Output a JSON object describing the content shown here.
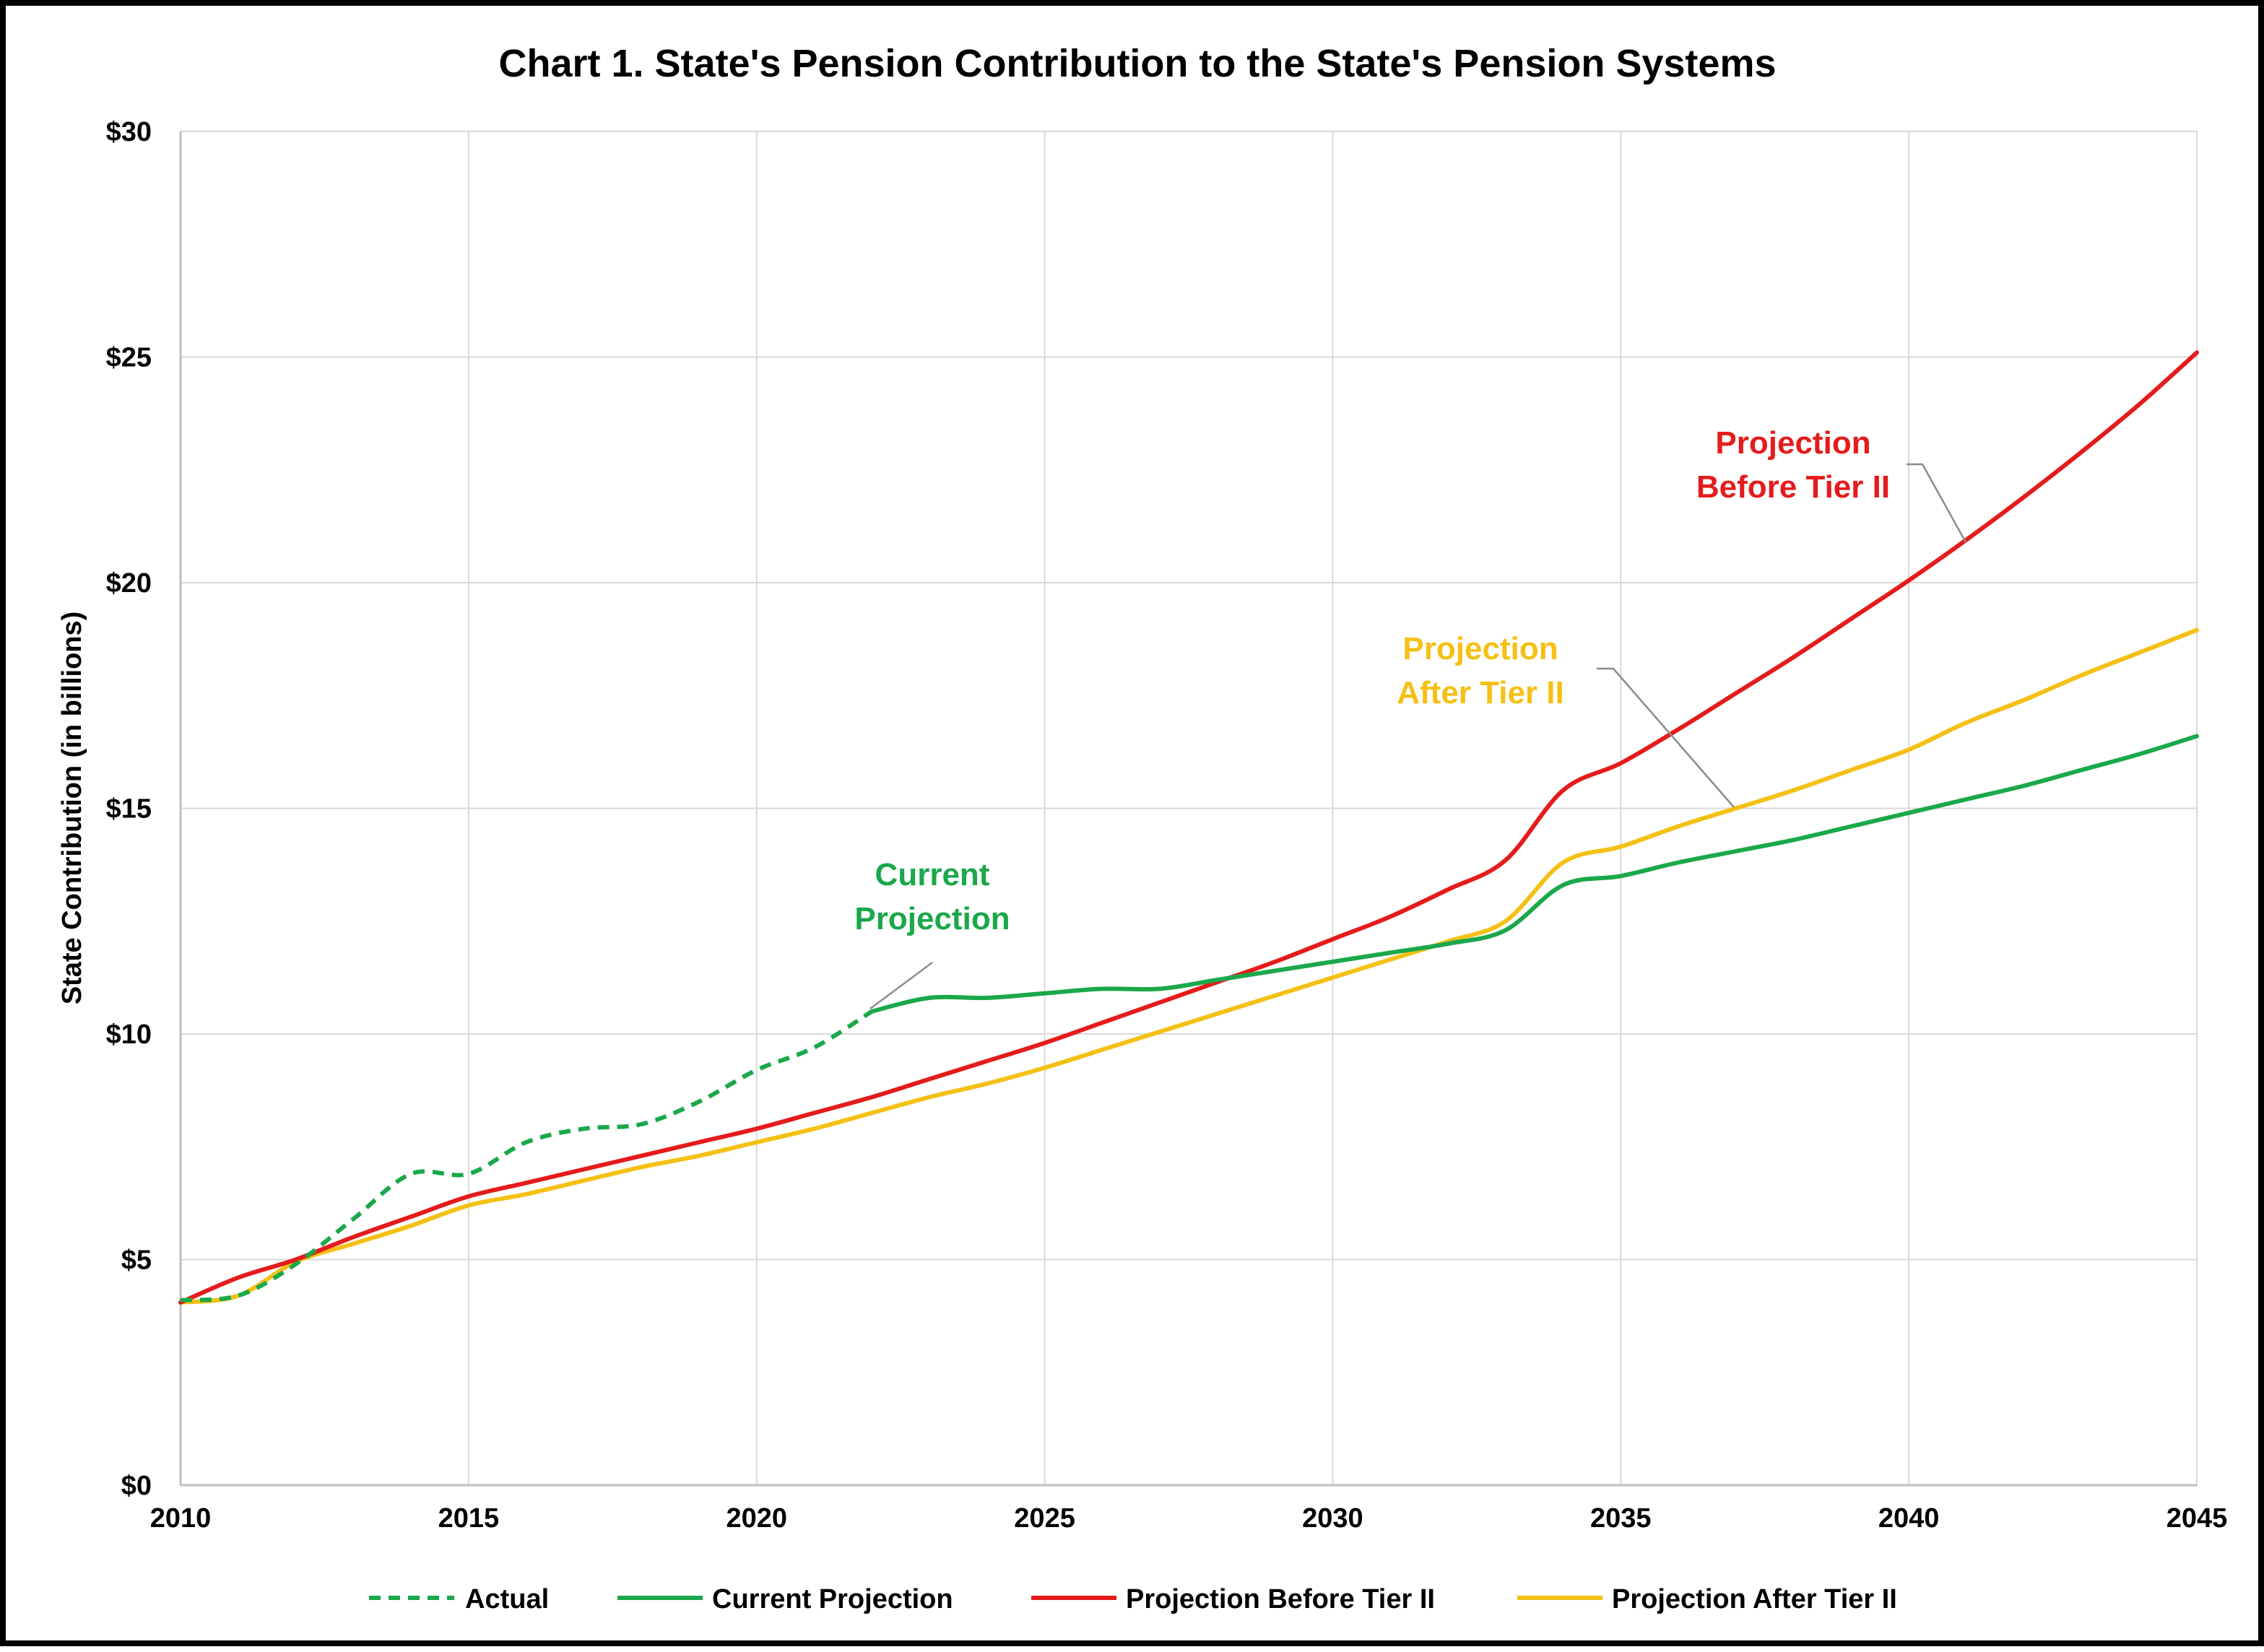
{
  "chart_data": {
    "type": "line",
    "title": "Chart 1. State's Pension Contribution to the State's Pension Systems",
    "xlabel": "",
    "ylabel": "State Contribution (in billions)",
    "xlim": [
      2010,
      2045
    ],
    "ylim": [
      0,
      30
    ],
    "x_ticks": [
      "2010",
      "2015",
      "2020",
      "2025",
      "2030",
      "2035",
      "2040",
      "2045"
    ],
    "y_ticks": [
      "$0",
      "$5",
      "$10",
      "$15",
      "$20",
      "$25",
      "$30"
    ],
    "grid": true,
    "legend_position": "bottom",
    "series": [
      {
        "name": "Actual",
        "color": "#1aa84a",
        "style": "dashed",
        "points": [
          [
            2010,
            4.1
          ],
          [
            2011,
            4.2
          ],
          [
            2012,
            4.9
          ],
          [
            2013,
            5.9
          ],
          [
            2014,
            6.9
          ],
          [
            2015,
            6.9
          ],
          [
            2016,
            7.6
          ],
          [
            2017,
            7.9
          ],
          [
            2018,
            8.0
          ],
          [
            2019,
            8.5
          ],
          [
            2020,
            9.2
          ],
          [
            2021,
            9.7
          ],
          [
            2022,
            10.5
          ]
        ]
      },
      {
        "name": "Current Projection",
        "color": "#1aa84a",
        "style": "solid",
        "points": [
          [
            2022,
            10.5
          ],
          [
            2023,
            10.8
          ],
          [
            2024,
            10.8
          ],
          [
            2025,
            10.9
          ],
          [
            2026,
            11.0
          ],
          [
            2027,
            11.0
          ],
          [
            2028,
            11.2
          ],
          [
            2029,
            11.4
          ],
          [
            2030,
            11.6
          ],
          [
            2031,
            11.8
          ],
          [
            2032,
            12.0
          ],
          [
            2033,
            12.3
          ],
          [
            2034,
            13.3
          ],
          [
            2035,
            13.5
          ],
          [
            2036,
            13.8
          ],
          [
            2037,
            14.05
          ],
          [
            2038,
            14.3
          ],
          [
            2039,
            14.6
          ],
          [
            2040,
            14.9
          ],
          [
            2041,
            15.2
          ],
          [
            2042,
            15.5
          ],
          [
            2043,
            15.85
          ],
          [
            2044,
            16.2
          ],
          [
            2045,
            16.6
          ]
        ]
      },
      {
        "name": "Projection Before Tier II",
        "color": "#e51b1b",
        "style": "solid",
        "points": [
          [
            2010,
            4.05
          ],
          [
            2011,
            4.6
          ],
          [
            2012,
            5.0
          ],
          [
            2013,
            5.5
          ],
          [
            2014,
            5.95
          ],
          [
            2015,
            6.4
          ],
          [
            2016,
            6.7
          ],
          [
            2017,
            7.0
          ],
          [
            2018,
            7.3
          ],
          [
            2019,
            7.6
          ],
          [
            2020,
            7.9
          ],
          [
            2021,
            8.25
          ],
          [
            2022,
            8.6
          ],
          [
            2023,
            9.0
          ],
          [
            2024,
            9.4
          ],
          [
            2025,
            9.8
          ],
          [
            2026,
            10.25
          ],
          [
            2027,
            10.7
          ],
          [
            2028,
            11.15
          ],
          [
            2029,
            11.6
          ],
          [
            2030,
            12.1
          ],
          [
            2031,
            12.6
          ],
          [
            2032,
            13.2
          ],
          [
            2033,
            13.85
          ],
          [
            2034,
            15.4
          ],
          [
            2035,
            16.0
          ],
          [
            2036,
            16.75
          ],
          [
            2037,
            17.55
          ],
          [
            2038,
            18.35
          ],
          [
            2039,
            19.2
          ],
          [
            2040,
            20.05
          ],
          [
            2041,
            20.95
          ],
          [
            2042,
            21.9
          ],
          [
            2043,
            22.9
          ],
          [
            2044,
            23.95
          ],
          [
            2045,
            25.1
          ]
        ]
      },
      {
        "name": "Projection After Tier II",
        "color": "#f5c014",
        "style": "solid",
        "points": [
          [
            2010,
            4.05
          ],
          [
            2011,
            4.2
          ],
          [
            2012,
            4.95
          ],
          [
            2013,
            5.35
          ],
          [
            2014,
            5.75
          ],
          [
            2015,
            6.2
          ],
          [
            2016,
            6.45
          ],
          [
            2017,
            6.75
          ],
          [
            2018,
            7.05
          ],
          [
            2019,
            7.3
          ],
          [
            2020,
            7.6
          ],
          [
            2021,
            7.9
          ],
          [
            2022,
            8.25
          ],
          [
            2023,
            8.6
          ],
          [
            2024,
            8.9
          ],
          [
            2025,
            9.25
          ],
          [
            2026,
            9.65
          ],
          [
            2027,
            10.05
          ],
          [
            2028,
            10.45
          ],
          [
            2029,
            10.85
          ],
          [
            2030,
            11.25
          ],
          [
            2031,
            11.65
          ],
          [
            2032,
            12.05
          ],
          [
            2033,
            12.5
          ],
          [
            2034,
            13.8
          ],
          [
            2035,
            14.15
          ],
          [
            2036,
            14.6
          ],
          [
            2037,
            15.0
          ],
          [
            2038,
            15.4
          ],
          [
            2039,
            15.85
          ],
          [
            2040,
            16.3
          ],
          [
            2041,
            16.9
          ],
          [
            2042,
            17.4
          ],
          [
            2043,
            17.95
          ],
          [
            2044,
            18.45
          ],
          [
            2045,
            18.95
          ]
        ]
      }
    ],
    "annotations": [
      {
        "lines": [
          "Current",
          "Projection"
        ],
        "color": "#1aa84a",
        "anchor": [
          2022,
          10.5
        ]
      },
      {
        "lines": [
          "Projection",
          "After Tier II"
        ],
        "color": "#f5c014",
        "anchor": [
          2037,
          15.0
        ]
      },
      {
        "lines": [
          "Projection",
          "Before Tier II"
        ],
        "color": "#e51b1b",
        "anchor": [
          2041,
          20.95
        ]
      }
    ]
  }
}
